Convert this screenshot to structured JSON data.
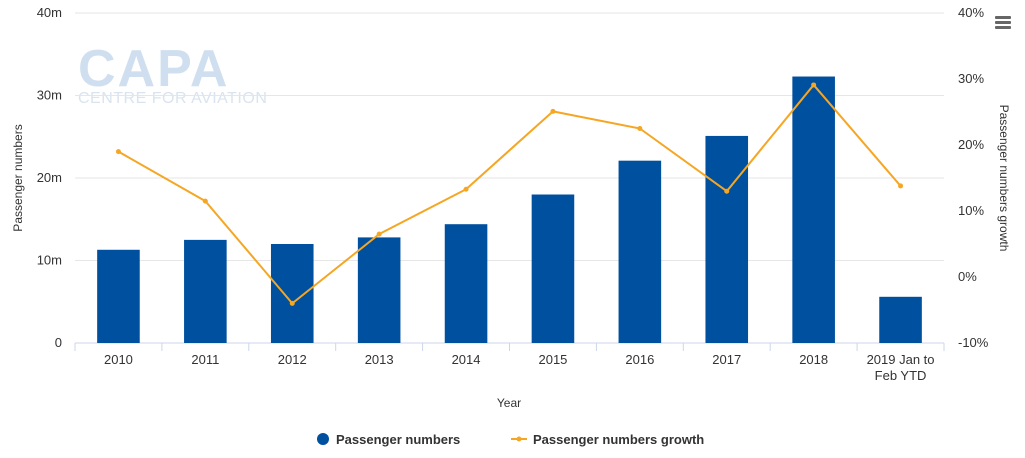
{
  "menu": {
    "icon": "hamburger-menu-icon"
  },
  "watermark": {
    "brand": "CAPA",
    "tagline": "CENTRE FOR AVIATION"
  },
  "chart_data": {
    "type": "bar",
    "categories": [
      "2010",
      "2011",
      "2012",
      "2013",
      "2014",
      "2015",
      "2016",
      "2017",
      "2018",
      "2019 Jan to Feb YTD"
    ],
    "category_lines": [
      [
        "2010"
      ],
      [
        "2011"
      ],
      [
        "2012"
      ],
      [
        "2013"
      ],
      [
        "2014"
      ],
      [
        "2015"
      ],
      [
        "2016"
      ],
      [
        "2017"
      ],
      [
        "2018"
      ],
      [
        "2019 Jan to",
        "Feb YTD"
      ]
    ],
    "xlabel": "Year",
    "ylabel": "Passenger numbers",
    "y2label": "Passenger numbers growth",
    "ylim": [
      0,
      40000000
    ],
    "y2lim": [
      -0.1,
      0.4
    ],
    "yticks": [
      {
        "value": 0,
        "label": "0"
      },
      {
        "value": 10000000,
        "label": "10m"
      },
      {
        "value": 20000000,
        "label": "20m"
      },
      {
        "value": 30000000,
        "label": "30m"
      },
      {
        "value": 40000000,
        "label": "40m"
      }
    ],
    "y2ticks": [
      {
        "value": -0.1,
        "label": "-10%"
      },
      {
        "value": 0,
        "label": "0%"
      },
      {
        "value": 0.1,
        "label": "10%"
      },
      {
        "value": 0.2,
        "label": "20%"
      },
      {
        "value": 0.3,
        "label": "30%"
      },
      {
        "value": 0.4,
        "label": "40%"
      }
    ],
    "grid": true,
    "legend_position": "bottom-center",
    "series": [
      {
        "name": "Passenger numbers",
        "kind": "bar",
        "axis": "left",
        "color": "#0050a0",
        "values": [
          11300000,
          12500000,
          12000000,
          12800000,
          14400000,
          18000000,
          22100000,
          25100000,
          32300000,
          5600000
        ]
      },
      {
        "name": "Passenger numbers growth",
        "kind": "line",
        "axis": "right",
        "color": "#f5a623",
        "values": [
          0.19,
          0.115,
          -0.04,
          0.065,
          0.133,
          0.251,
          0.225,
          0.13,
          0.291,
          0.138
        ]
      }
    ]
  }
}
